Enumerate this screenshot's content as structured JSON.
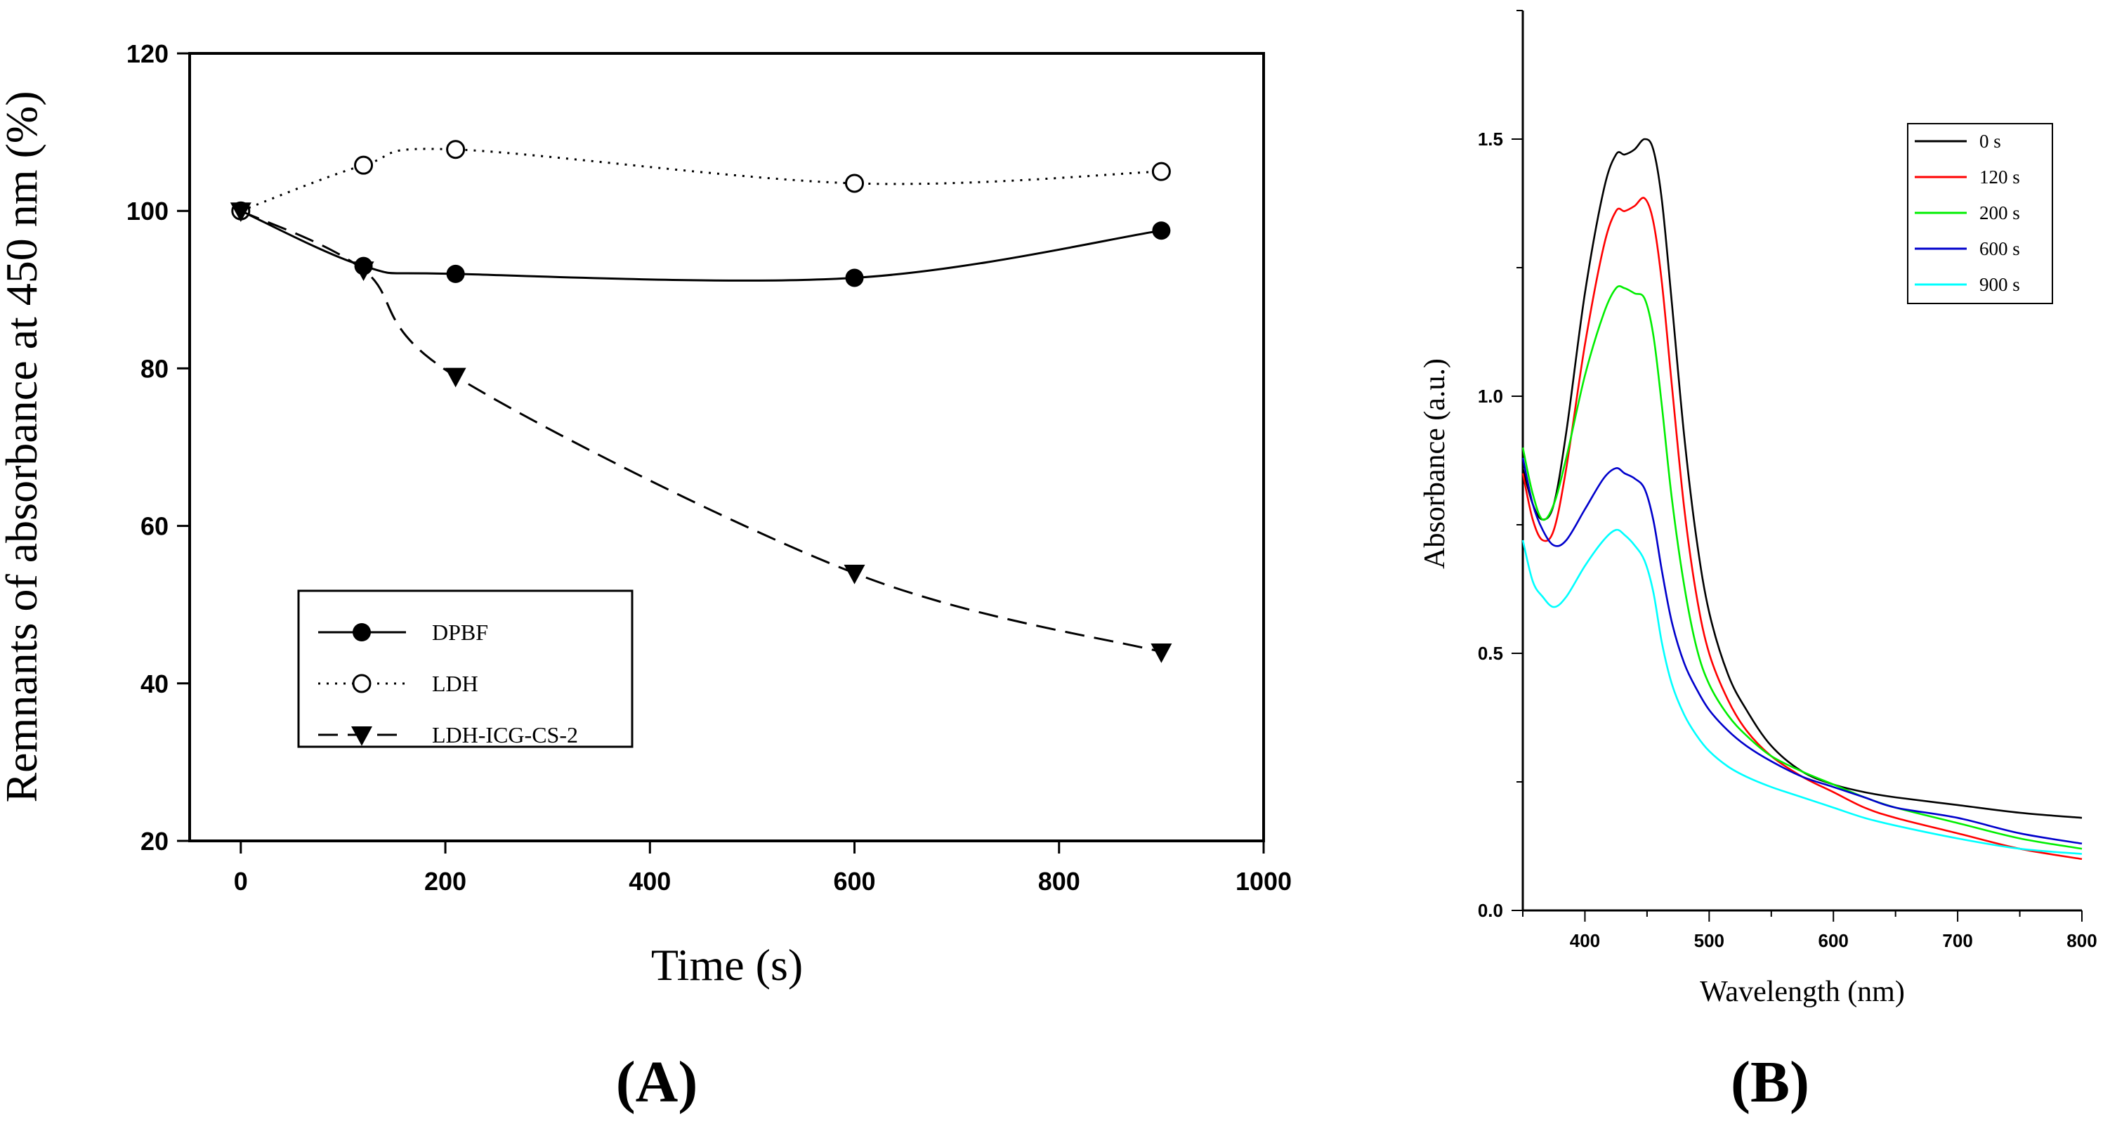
{
  "chart_data": [
    {
      "type": "line",
      "panel_label": "(A)",
      "xlabel": "Time (s)",
      "ylabel": "Remnants of absorbance at 450 nm (%)",
      "xlim": [
        -50,
        1000
      ],
      "ylim": [
        20,
        120
      ],
      "xticks": [
        0,
        200,
        400,
        600,
        800,
        1000
      ],
      "yticks": [
        20,
        40,
        60,
        80,
        100,
        120
      ],
      "legend_position": "lower-left",
      "series": [
        {
          "name": "DPBF",
          "linestyle": "solid",
          "marker": "filled-circle",
          "x": [
            0,
            120,
            210,
            600,
            900
          ],
          "y": [
            100,
            93,
            92,
            91.5,
            97.5
          ]
        },
        {
          "name": "LDH",
          "linestyle": "dotted",
          "marker": "open-circle",
          "x": [
            0,
            120,
            210,
            600,
            900
          ],
          "y": [
            100,
            105.8,
            107.8,
            103.5,
            105
          ]
        },
        {
          "name": "LDH-ICG-CS-2",
          "linestyle": "dashed",
          "marker": "filled-down-triangle",
          "x": [
            0,
            120,
            210,
            600,
            900
          ],
          "y": [
            100,
            92.5,
            79,
            54,
            44
          ]
        }
      ]
    },
    {
      "type": "line",
      "panel_label": "(B)",
      "xlabel": "Wavelength (nm)",
      "ylabel": "Absorbance (a.u.)",
      "xlim": [
        350,
        800
      ],
      "ylim": [
        0,
        1.75
      ],
      "xticks": [
        400,
        500,
        600,
        700,
        800
      ],
      "yticks": [
        0.0,
        0.5,
        1.0,
        1.5
      ],
      "ytick_labels": [
        "0.0",
        "0.5",
        "1.0",
        "1.5"
      ],
      "legend_position": "top-right",
      "series": [
        {
          "name": "0 s",
          "color": "#000000",
          "x": [
            350,
            358,
            366,
            375,
            385,
            400,
            415,
            425,
            432,
            440,
            448,
            455,
            462,
            470,
            480,
            490,
            500,
            515,
            530,
            550,
            575,
            600,
            625,
            650,
            700,
            750,
            800
          ],
          "y": [
            0.86,
            0.79,
            0.76,
            0.79,
            0.93,
            1.2,
            1.4,
            1.47,
            1.47,
            1.48,
            1.5,
            1.48,
            1.38,
            1.18,
            0.92,
            0.72,
            0.58,
            0.46,
            0.39,
            0.32,
            0.27,
            0.245,
            0.23,
            0.22,
            0.205,
            0.19,
            0.18
          ]
        },
        {
          "name": "120 s",
          "color": "#ff0000",
          "x": [
            350,
            358,
            366,
            375,
            385,
            400,
            415,
            425,
            432,
            440,
            448,
            455,
            462,
            470,
            480,
            490,
            500,
            515,
            530,
            550,
            575,
            600,
            625,
            650,
            700,
            750,
            800
          ],
          "y": [
            0.85,
            0.76,
            0.72,
            0.74,
            0.86,
            1.1,
            1.29,
            1.36,
            1.36,
            1.37,
            1.385,
            1.34,
            1.22,
            1.02,
            0.78,
            0.61,
            0.5,
            0.41,
            0.35,
            0.3,
            0.26,
            0.23,
            0.2,
            0.18,
            0.15,
            0.12,
            0.1
          ]
        },
        {
          "name": "200 s",
          "color": "#00ee00",
          "x": [
            350,
            358,
            366,
            375,
            385,
            400,
            415,
            425,
            432,
            440,
            448,
            455,
            462,
            470,
            480,
            490,
            500,
            515,
            530,
            550,
            575,
            600,
            625,
            650,
            700,
            750,
            800
          ],
          "y": [
            0.9,
            0.81,
            0.76,
            0.79,
            0.88,
            1.04,
            1.16,
            1.21,
            1.21,
            1.2,
            1.19,
            1.12,
            0.98,
            0.8,
            0.63,
            0.51,
            0.44,
            0.38,
            0.34,
            0.3,
            0.27,
            0.245,
            0.22,
            0.2,
            0.17,
            0.14,
            0.12
          ]
        },
        {
          "name": "600 s",
          "color": "#0000cc",
          "x": [
            350,
            358,
            366,
            375,
            385,
            400,
            415,
            425,
            432,
            440,
            448,
            455,
            462,
            470,
            480,
            490,
            500,
            515,
            530,
            550,
            575,
            600,
            625,
            650,
            700,
            750,
            800
          ],
          "y": [
            0.88,
            0.79,
            0.74,
            0.71,
            0.72,
            0.78,
            0.84,
            0.86,
            0.85,
            0.84,
            0.82,
            0.76,
            0.66,
            0.56,
            0.48,
            0.43,
            0.39,
            0.35,
            0.32,
            0.29,
            0.26,
            0.24,
            0.22,
            0.2,
            0.18,
            0.15,
            0.13
          ]
        },
        {
          "name": "900 s",
          "color": "#00ffff",
          "x": [
            350,
            358,
            366,
            375,
            385,
            400,
            415,
            425,
            432,
            440,
            448,
            455,
            462,
            470,
            480,
            490,
            500,
            515,
            530,
            550,
            575,
            600,
            625,
            650,
            700,
            750,
            800
          ],
          "y": [
            0.72,
            0.64,
            0.61,
            0.59,
            0.61,
            0.67,
            0.72,
            0.74,
            0.73,
            0.71,
            0.68,
            0.62,
            0.52,
            0.44,
            0.38,
            0.34,
            0.31,
            0.28,
            0.26,
            0.24,
            0.22,
            0.2,
            0.18,
            0.165,
            0.14,
            0.12,
            0.11
          ]
        }
      ]
    }
  ]
}
